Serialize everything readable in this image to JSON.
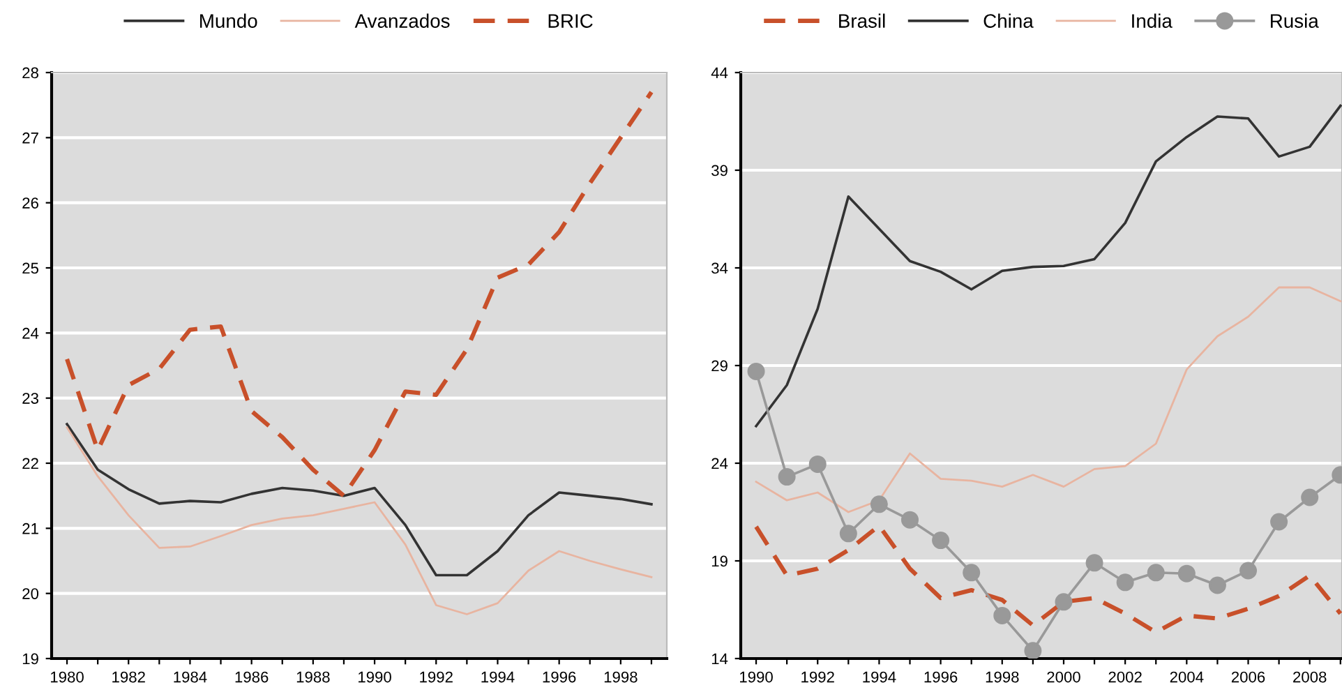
{
  "chart_data": [
    {
      "type": "line",
      "categories": [
        "1980",
        null,
        "1982",
        null,
        "1984",
        null,
        "1986",
        null,
        "1988",
        null,
        "1990",
        null,
        "1992",
        null,
        "1994",
        null,
        "1996",
        null,
        "1998",
        null
      ],
      "ylim": [
        19,
        28
      ],
      "yticks": [
        19,
        20,
        21,
        22,
        23,
        24,
        25,
        26,
        27,
        28
      ],
      "grid": "y",
      "legend": "top",
      "series": [
        {
          "name": "Mundo",
          "color": "#333333",
          "line_style": "solid",
          "values": [
            22.6,
            21.9,
            21.6,
            21.38,
            21.42,
            21.4,
            21.53,
            21.62,
            21.58,
            21.5,
            21.62,
            21.05,
            20.28,
            20.28,
            20.65,
            21.2,
            21.55,
            21.5,
            21.45,
            21.37
          ]
        },
        {
          "name": "Avanzados",
          "color": "#e8b4a0",
          "line_style": "solid",
          "values": [
            22.55,
            21.8,
            21.2,
            20.7,
            20.72,
            20.88,
            21.05,
            21.15,
            21.2,
            21.3,
            21.4,
            20.75,
            19.82,
            19.68,
            19.85,
            20.35,
            20.65,
            20.5,
            20.37,
            20.25
          ]
        },
        {
          "name": "BRIC",
          "color": "#c8502a",
          "line_style": "dashed",
          "values": [
            23.6,
            22.2,
            23.2,
            23.45,
            24.05,
            24.1,
            22.8,
            22.4,
            21.9,
            21.5,
            22.2,
            23.1,
            23.05,
            23.75,
            24.85,
            25.05,
            25.55,
            26.3,
            27.0,
            27.7
          ]
        }
      ]
    },
    {
      "type": "line",
      "categories": [
        "1990",
        null,
        "1992",
        null,
        "1994",
        null,
        "1996",
        null,
        "1998",
        null,
        "2000",
        null,
        "2002",
        null,
        "2004",
        null,
        "2006",
        null,
        "2008",
        null
      ],
      "ylim": [
        14,
        44
      ],
      "yticks": [
        14,
        19,
        24,
        29,
        34,
        39,
        44
      ],
      "grid": "y",
      "legend": "top",
      "series": [
        {
          "name": "Brasil",
          "color": "#c8502a",
          "line_style": "dashed",
          "values": [
            20.75,
            18.25,
            18.6,
            19.55,
            20.8,
            18.6,
            17.1,
            17.5,
            17.0,
            15.7,
            16.9,
            17.1,
            16.3,
            15.35,
            16.2,
            16.05,
            16.55,
            17.2,
            18.25,
            16.3
          ]
        },
        {
          "name": "China",
          "color": "#333333",
          "line_style": "solid",
          "values": [
            25.9,
            28.0,
            31.9,
            37.65,
            36.0,
            34.35,
            33.8,
            32.9,
            33.85,
            34.05,
            34.1,
            34.45,
            36.3,
            39.45,
            40.7,
            41.75,
            41.65,
            39.7,
            40.2,
            42.3
          ]
        },
        {
          "name": "India",
          "color": "#e8b4a0",
          "line_style": "solid",
          "values": [
            23.05,
            22.1,
            22.5,
            21.5,
            22.1,
            24.5,
            23.2,
            23.1,
            22.8,
            23.4,
            22.8,
            23.7,
            23.85,
            25.0,
            28.8,
            30.5,
            31.5,
            33.0,
            33.0,
            32.3
          ]
        },
        {
          "name": "Rusia",
          "color": "#999999",
          "line_style": "solid",
          "marker": "circle",
          "values": [
            28.7,
            23.3,
            23.95,
            20.4,
            21.9,
            21.1,
            20.05,
            18.4,
            16.2,
            14.4,
            16.9,
            18.9,
            17.9,
            18.4,
            18.35,
            17.75,
            18.5,
            21.0,
            22.25,
            23.4
          ]
        }
      ]
    }
  ]
}
